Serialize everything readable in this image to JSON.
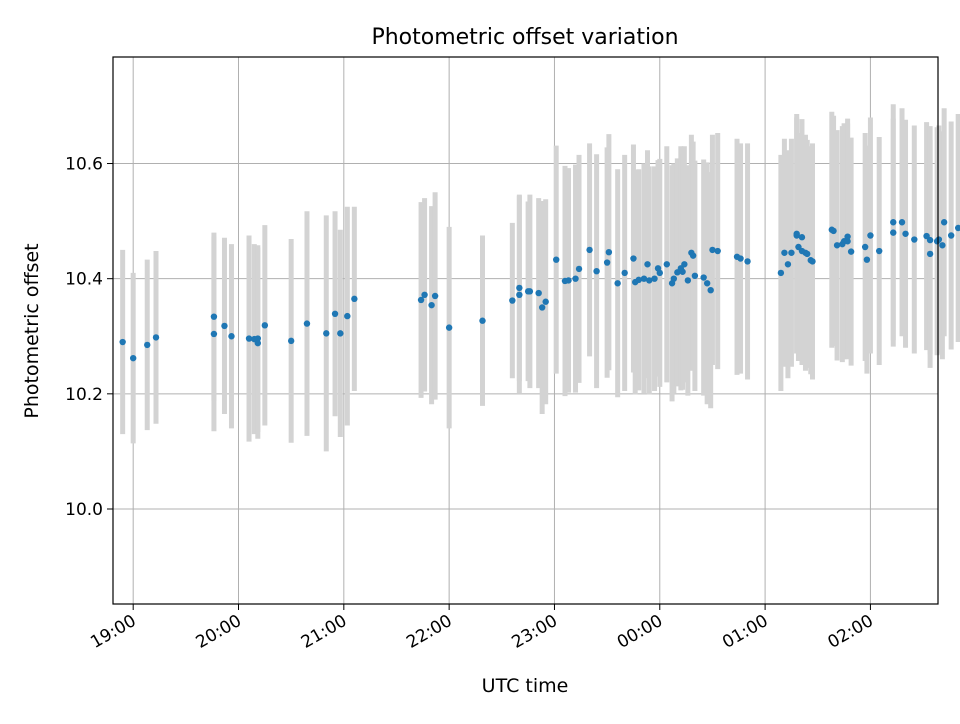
{
  "chart_data": {
    "type": "scatter",
    "title": "Photometric offset variation",
    "xlabel": "UTC time",
    "ylabel": "Photometric offset",
    "x_unit": "minutes",
    "x_ticks": [
      {
        "label": "19:00",
        "value": 0
      },
      {
        "label": "20:00",
        "value": 60
      },
      {
        "label": "21:00",
        "value": 120
      },
      {
        "label": "22:00",
        "value": 180
      },
      {
        "label": "23:00",
        "value": 240
      },
      {
        "label": "00:00",
        "value": 300
      },
      {
        "label": "01:00",
        "value": 360
      },
      {
        "label": "02:00",
        "value": 420
      }
    ],
    "y_ticks": [
      "10.0",
      "10.2",
      "10.4",
      "10.6"
    ],
    "xlim": [
      -11.5,
      458.5
    ],
    "ylim": [
      9.835,
      10.785
    ],
    "grid": true,
    "colors": {
      "points": "#1f77b4",
      "errorbars": "#d3d3d3",
      "grid": "#b0b0b0"
    },
    "series": [
      {
        "x": [
          -6,
          0,
          8,
          13,
          46,
          46,
          52,
          56,
          66,
          69,
          71,
          71,
          75,
          90,
          99,
          110,
          115,
          118,
          122,
          126,
          164,
          166,
          170,
          172,
          180,
          199,
          216,
          220,
          220,
          225,
          226,
          231,
          233,
          235,
          241,
          246,
          248,
          252,
          254,
          260,
          264,
          270,
          271,
          276,
          280,
          285,
          286,
          288,
          291,
          293,
          294,
          297,
          299,
          300,
          304,
          307,
          308,
          310,
          312,
          313,
          314,
          316,
          318,
          319,
          320,
          325,
          327,
          329,
          330,
          333,
          344,
          346,
          350,
          369,
          371,
          373,
          375,
          378,
          378,
          379,
          381,
          381,
          383,
          384,
          386,
          387,
          398,
          399,
          401,
          404,
          405,
          407,
          407,
          409,
          417,
          418,
          420,
          425,
          433,
          433,
          438,
          440,
          445,
          452,
          454,
          454,
          458,
          459,
          461,
          462,
          466,
          470
        ],
        "y": [
          10.29,
          10.262,
          10.285,
          10.298,
          10.334,
          10.304,
          10.318,
          10.3,
          10.296,
          10.295,
          10.296,
          10.288,
          10.319,
          10.292,
          10.322,
          10.305,
          10.339,
          10.305,
          10.335,
          10.365,
          10.363,
          10.372,
          10.354,
          10.37,
          10.315,
          10.327,
          10.362,
          10.372,
          10.384,
          10.378,
          10.378,
          10.375,
          10.35,
          10.36,
          10.433,
          10.396,
          10.397,
          10.4,
          10.417,
          10.45,
          10.413,
          10.428,
          10.446,
          10.392,
          10.41,
          10.435,
          10.394,
          10.398,
          10.4,
          10.425,
          10.397,
          10.4,
          10.418,
          10.41,
          10.425,
          10.392,
          10.4,
          10.411,
          10.418,
          10.412,
          10.425,
          10.397,
          10.445,
          10.44,
          10.405,
          10.402,
          10.392,
          10.38,
          10.45,
          10.448,
          10.438,
          10.435,
          10.43,
          10.41,
          10.445,
          10.425,
          10.445,
          10.475,
          10.478,
          10.455,
          10.448,
          10.472,
          10.445,
          10.443,
          10.432,
          10.43,
          10.485,
          10.483,
          10.458,
          10.46,
          10.465,
          10.465,
          10.473,
          10.447,
          10.455,
          10.433,
          10.475,
          10.448,
          10.498,
          10.48,
          10.498,
          10.478,
          10.468,
          10.474,
          10.467,
          10.443,
          10.465,
          10.468,
          10.458,
          10.498,
          10.475,
          10.488
        ],
        "yerr": [
          0.16,
          0.148,
          0.148,
          0.15,
          0.146,
          0.169,
          0.153,
          0.16,
          0.179,
          0.165,
          0.162,
          0.166,
          0.174,
          0.177,
          0.195,
          0.205,
          0.178,
          0.18,
          0.19,
          0.16,
          0.17,
          0.168,
          0.172,
          0.18,
          0.175,
          0.148,
          0.135,
          0.172,
          0.162,
          0.156,
          0.168,
          0.165,
          0.185,
          0.178,
          0.198,
          0.2,
          0.195,
          0.198,
          0.198,
          0.185,
          0.203,
          0.2,
          0.205,
          0.198,
          0.205,
          0.198,
          0.195,
          0.192,
          0.2,
          0.198,
          0.198,
          0.195,
          0.188,
          0.198,
          0.205,
          0.205,
          0.2,
          0.198,
          0.212,
          0.205,
          0.205,
          0.2,
          0.205,
          0.198,
          0.2,
          0.205,
          0.21,
          0.205,
          0.2,
          0.205,
          0.205,
          0.2,
          0.205,
          0.205,
          0.198,
          0.198,
          0.198,
          0.205,
          0.208,
          0.198,
          0.198,
          0.205,
          0.205,
          0.198,
          0.198,
          0.205,
          0.205,
          0.2,
          0.2,
          0.205,
          0.205,
          0.205,
          0.205,
          0.198,
          0.198,
          0.198,
          0.205,
          0.198,
          0.205,
          0.198,
          0.198,
          0.198,
          0.198,
          0.198,
          0.198,
          0.198,
          0.198,
          0.198,
          0.198,
          0.198,
          0.198,
          0.198
        ]
      }
    ]
  }
}
